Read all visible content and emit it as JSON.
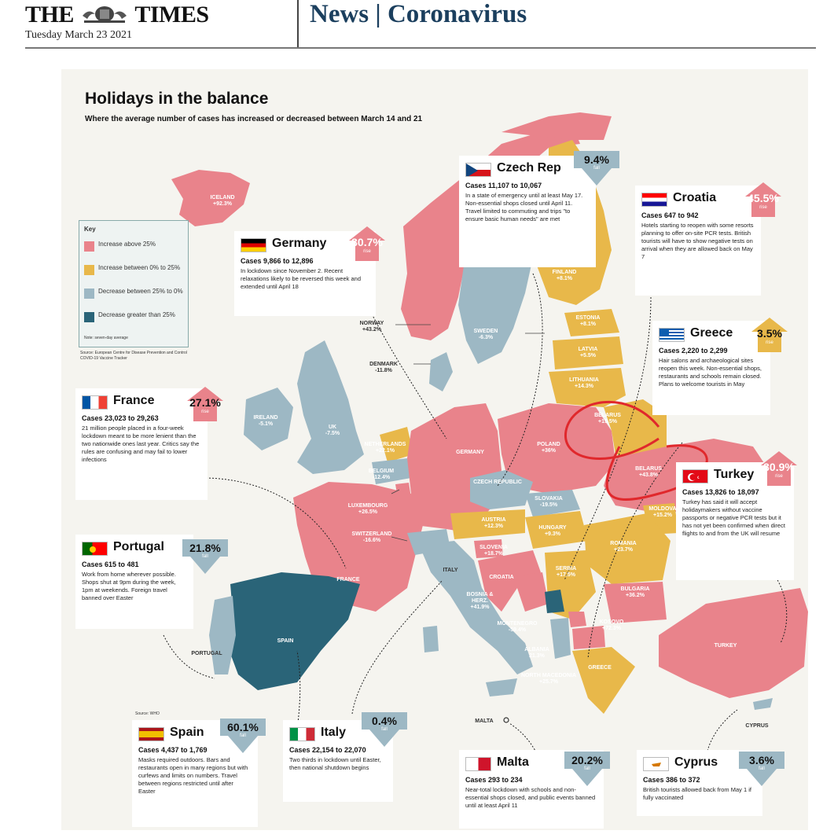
{
  "masthead": {
    "paper_name_left": "THE",
    "paper_name_right": "TIMES",
    "date": "Tuesday March 23 2021",
    "section_left": "News",
    "section_right": "Coronavirus"
  },
  "graphic": {
    "title": "Holidays in the balance",
    "subtitle": "Where the average number of cases has increased or decreased between March 14 and 21",
    "legend": {
      "title": "Key",
      "items": [
        {
          "label": "Increase above 25%",
          "color": "#e9838b"
        },
        {
          "label": "Increase between 0% to 25%",
          "color": "#e8b84a"
        },
        {
          "label": "Decrease between 25% to 0%",
          "color": "#9db8c4"
        },
        {
          "label": "Decrease greater than 25%",
          "color": "#2a6478"
        }
      ],
      "note": "Note: seven-day average"
    },
    "legend_source": "Source: European Centre for Disease Prevention and Control COVID-19 Vaccine Tracker",
    "map_source": "Source: WHO",
    "map_labels": {
      "iceland": {
        "name": "ICELAND",
        "value": "+92.3%"
      },
      "norway": {
        "name": "NORWAY",
        "value": "+43.2%"
      },
      "sweden": {
        "name": "SWEDEN",
        "value": "-6.3%"
      },
      "finland": {
        "name": "FINLAND",
        "value": "+8.1%"
      },
      "estonia": {
        "name": "ESTONIA",
        "value": "+8.1%"
      },
      "latvia": {
        "name": "LATVIA",
        "value": "+5.5%"
      },
      "lithuania": {
        "name": "LITHUANIA",
        "value": "+14.3%"
      },
      "denmark": {
        "name": "DENMARK",
        "value": "-11.8%"
      },
      "ireland": {
        "name": "IRELAND",
        "value": "-5.1%"
      },
      "uk": {
        "name": "UK",
        "value": "-7.5%"
      },
      "netherlands": {
        "name": "NETHERLANDS",
        "value": "+22.1%"
      },
      "belgium": {
        "name": "BELGIUM",
        "value": "-12.4%"
      },
      "luxembourg": {
        "name": "LUXEMBOURG",
        "value": "+26.5%"
      },
      "switzerland": {
        "name": "SWITZERLAND",
        "value": "-16.6%"
      },
      "germany": {
        "name": "GERMANY",
        "value": ""
      },
      "poland": {
        "name": "POLAND",
        "value": "+36%"
      },
      "belarus": {
        "name": "BELARUS",
        "value": "+15.5%"
      },
      "ukraine": {
        "name": "BELARUS",
        "value": "+43.8%"
      },
      "czech": {
        "name": "CZECH REPUBLIC",
        "value": ""
      },
      "slovakia": {
        "name": "SLOVAKIA",
        "value": "-19.5%"
      },
      "austria": {
        "name": "AUSTRIA",
        "value": "+12.3%"
      },
      "hungary": {
        "name": "HUNGARY",
        "value": "+9.3%"
      },
      "moldova": {
        "name": "MOLDOVA",
        "value": "+15.2%"
      },
      "romania": {
        "name": "ROMANIA",
        "value": "+23.7%"
      },
      "slovenia": {
        "name": "SLOVENIA",
        "value": "+18.7%"
      },
      "croatia": {
        "name": "CROATIA",
        "value": ""
      },
      "serbia": {
        "name": "SERBIA",
        "value": "+17.5%"
      },
      "bulgaria": {
        "name": "BULGARIA",
        "value": "+36.2%"
      },
      "bosnia": {
        "name": "BOSNIA & HERZ.",
        "value": "+41.9%"
      },
      "montenegro": {
        "name": "MONTENEGRO",
        "value": "-59.4%"
      },
      "kosovo": {
        "name": "KOSOVO",
        "value": "+72.3%"
      },
      "albania": {
        "name": "ALBANIA",
        "value": "21.3%"
      },
      "north_macedonia": {
        "name": "NORTH MACEDONIA",
        "value": "+25.7%"
      },
      "greece": {
        "name": "GREECE",
        "value": ""
      },
      "turkey": {
        "name": "TURKEY",
        "value": ""
      },
      "france": {
        "name": "FRANCE",
        "value": ""
      },
      "italy": {
        "name": "ITALY",
        "value": ""
      },
      "spain": {
        "name": "SPAIN",
        "value": ""
      },
      "portugal": {
        "name": "PORTUGAL",
        "value": ""
      },
      "malta": {
        "name": "MALTA",
        "value": ""
      },
      "cyprus": {
        "name": "CYPRUS",
        "value": ""
      }
    },
    "cards": {
      "czech": {
        "name": "Czech Rep",
        "pct": "9.4%",
        "dir": "fall",
        "cases": "Cases 11,107 to 10,067",
        "note": "In a state of emergency until at least May 17. Non-essential shops closed until April 11. Travel limited to commuting and trips \"to ensure basic human needs\" are met"
      },
      "croatia": {
        "name": "Croatia",
        "pct": "45.5%",
        "dir": "rise",
        "cases": "Cases 647 to 942",
        "note": "Hotels starting to reopen with some resorts planning to offer on-site PCR tests. British tourists will have to show negative tests on arrival when they are allowed back on May 7"
      },
      "germany": {
        "name": "Germany",
        "pct": "30.7%",
        "dir": "rise",
        "cases": "Cases 9,866 to 12,896",
        "note": "In lockdown since November 2. Recent relaxations likely to be reversed this week and extended until April 18"
      },
      "greece": {
        "name": "Greece",
        "pct": "3.5%",
        "dir": "rise",
        "cases": "Cases 2,220 to 2,299",
        "note": "Hair salons and archaeological sites reopen this week. Non-essential shops, restaurants and schools remain closed. Plans to welcome tourists in May"
      },
      "france": {
        "name": "France",
        "pct": "27.1%",
        "dir": "rise",
        "cases": "Cases 23,023 to 29,263",
        "note": "21 million people placed in a four-week lockdown meant to be more lenient than the two nationwide ones last year. Critics say the rules are confusing and may fail to lower infections"
      },
      "turkey": {
        "name": "Turkey",
        "pct": "30.9%",
        "dir": "rise",
        "cases": "Cases 13,826 to 18,097",
        "note": "Turkey has said it will accept holidaymakers without vaccine passports or negative PCR tests but it has not yet been confirmed when direct flights to and from the UK will resume"
      },
      "portugal": {
        "name": "Portugal",
        "pct": "21.8%",
        "dir": "fall",
        "cases": "Cases 615 to 481",
        "note": "Work from home wherever possible. Shops shut at 9pm during the week, 1pm at weekends. Foreign travel banned over Easter"
      },
      "spain": {
        "name": "Spain",
        "pct": "60.1%",
        "dir": "fall",
        "cases": "Cases 4,437 to 1,769",
        "note": "Masks required outdoors. Bars and restaurants open in many regions but with curfews and limits on numbers. Travel between regions restricted until after Easter"
      },
      "italy": {
        "name": "Italy",
        "pct": "0.4%",
        "dir": "fall",
        "cases": "Cases 22,154 to 22,070",
        "note": "Two thirds in lockdown until Easter, then national shutdown begins"
      },
      "malta": {
        "name": "Malta",
        "pct": "20.2%",
        "dir": "fall",
        "cases": "Cases 293 to 234",
        "note": "Near-total lockdown with schools and non-essential shops closed, and public events banned until at least April 11"
      },
      "cyprus": {
        "name": "Cyprus",
        "pct": "3.6%",
        "dir": "fall",
        "cases": "Cases 386 to 372",
        "note": "British tourists allowed back from May 1 if fully vaccinated"
      }
    },
    "colors": {
      "increase_high": "#e9838b",
      "increase_low": "#e8b84a",
      "decrease_low": "#9db8c4",
      "decrease_high": "#2a6478",
      "annotation_circle": "#e0282c"
    }
  }
}
